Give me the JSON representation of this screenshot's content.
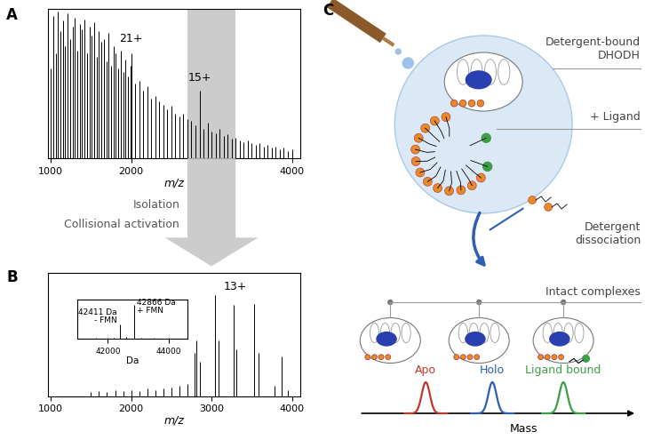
{
  "chart_data": [
    {
      "panel": "A",
      "type": "stem",
      "color": "#000000",
      "x": [
        1000,
        1030,
        1060,
        1090,
        1120,
        1150,
        1180,
        1210,
        1240,
        1270,
        1300,
        1330,
        1360,
        1390,
        1420,
        1450,
        1480,
        1510,
        1540,
        1570,
        1600,
        1630,
        1660,
        1690,
        1720,
        1750,
        1780,
        1810,
        1840,
        1870,
        1900,
        1930,
        1960,
        1990,
        2000,
        2050,
        2100,
        2150,
        2200,
        2250,
        2300,
        2350,
        2400,
        2450,
        2500,
        2550,
        2600,
        2650,
        2700,
        2750,
        2800,
        2850,
        2900,
        2950,
        3000,
        3050,
        3100,
        3150,
        3200,
        3250,
        3300,
        3350,
        3400,
        3450,
        3500,
        3550,
        3600,
        3650,
        3700,
        3750,
        3800,
        3850,
        3900,
        3950,
        4000
      ],
      "values": [
        60,
        95,
        70,
        98,
        85,
        92,
        75,
        97,
        80,
        88,
        94,
        72,
        90,
        86,
        93,
        70,
        88,
        82,
        91,
        68,
        85,
        78,
        80,
        65,
        84,
        62,
        75,
        70,
        60,
        72,
        58,
        66,
        55,
        62,
        70,
        50,
        52,
        45,
        48,
        40,
        42,
        38,
        36,
        33,
        35,
        30,
        28,
        30,
        26,
        25,
        22,
        45,
        20,
        24,
        18,
        17,
        20,
        15,
        16,
        13,
        14,
        12,
        11,
        12,
        10,
        9,
        10,
        8,
        9,
        7,
        8,
        6,
        7,
        5,
        6
      ],
      "xlim": [
        970,
        4100
      ],
      "ylim": [
        0,
        100
      ],
      "xticks": [
        1000,
        2000,
        3000,
        4000
      ],
      "yticks": [],
      "xlabel": "m/z",
      "tick_labels": "x",
      "annotations": [
        {
          "text": "21+",
          "x": 2000,
          "y": 76
        },
        {
          "text": "15+",
          "x": 2850,
          "y": 50
        }
      ],
      "isolation_window": [
        2700,
        3300
      ]
    },
    {
      "panel": "B",
      "type": "stem",
      "color": "#000000",
      "x": [
        1500,
        1600,
        1700,
        1800,
        1900,
        2000,
        2100,
        2200,
        2300,
        2400,
        2500,
        2600,
        2700,
        2790,
        2810,
        2860,
        3040,
        3090,
        3270,
        3310,
        3530,
        3580,
        3780,
        3870,
        3950
      ],
      "values": [
        3,
        4,
        3,
        5,
        4,
        5,
        4,
        6,
        5,
        6,
        7,
        8,
        10,
        35,
        45,
        28,
        82,
        45,
        74,
        38,
        75,
        35,
        8,
        32,
        5
      ],
      "xlim": [
        970,
        4100
      ],
      "ylim": [
        0,
        100
      ],
      "xticks": [
        1000,
        2000,
        3000,
        4000
      ],
      "yticks": [],
      "xlabel": "m/z",
      "tick_labels": "x",
      "annotations": [
        {
          "text": "13+",
          "x": 3300,
          "y": 84
        }
      ],
      "inset": {
        "type": "stem",
        "color": "#000000",
        "x": [
          41600,
          42000,
          42200,
          42411,
          42600,
          42866,
          43100,
          43500,
          44000
        ],
        "values": [
          2,
          3,
          4,
          40,
          5,
          95,
          4,
          3,
          2
        ],
        "xlim": [
          41000,
          44600
        ],
        "ylim": [
          0,
          110
        ],
        "xticks": [
          42000,
          44000
        ],
        "yticks": [],
        "xlabel": "Da",
        "tick_labels": "x",
        "annotations": [
          {
            "text": "42866 Da\n+ FMN",
            "x": 42866,
            "y": 95
          },
          {
            "text": "42411 Da\n- FMN",
            "x": 42411,
            "y": 40
          }
        ]
      }
    }
  ],
  "transition": {
    "labels": [
      "Isolation",
      "Collisional activation"
    ]
  },
  "diagram": {
    "panel": "C",
    "labels": {
      "complex": "Detergent-bound\nDHODH",
      "ligand": "+ Ligand",
      "dissociation": "Detergent\ndissociation",
      "products": "Intact complexes"
    },
    "peaks": [
      {
        "label": "Apo",
        "color": "#c0392b"
      },
      {
        "label": "Holo",
        "color": "#2e5fb4"
      },
      {
        "label": "Ligand bound",
        "color": "#3c9e46"
      }
    ],
    "axis_label": "Mass"
  }
}
